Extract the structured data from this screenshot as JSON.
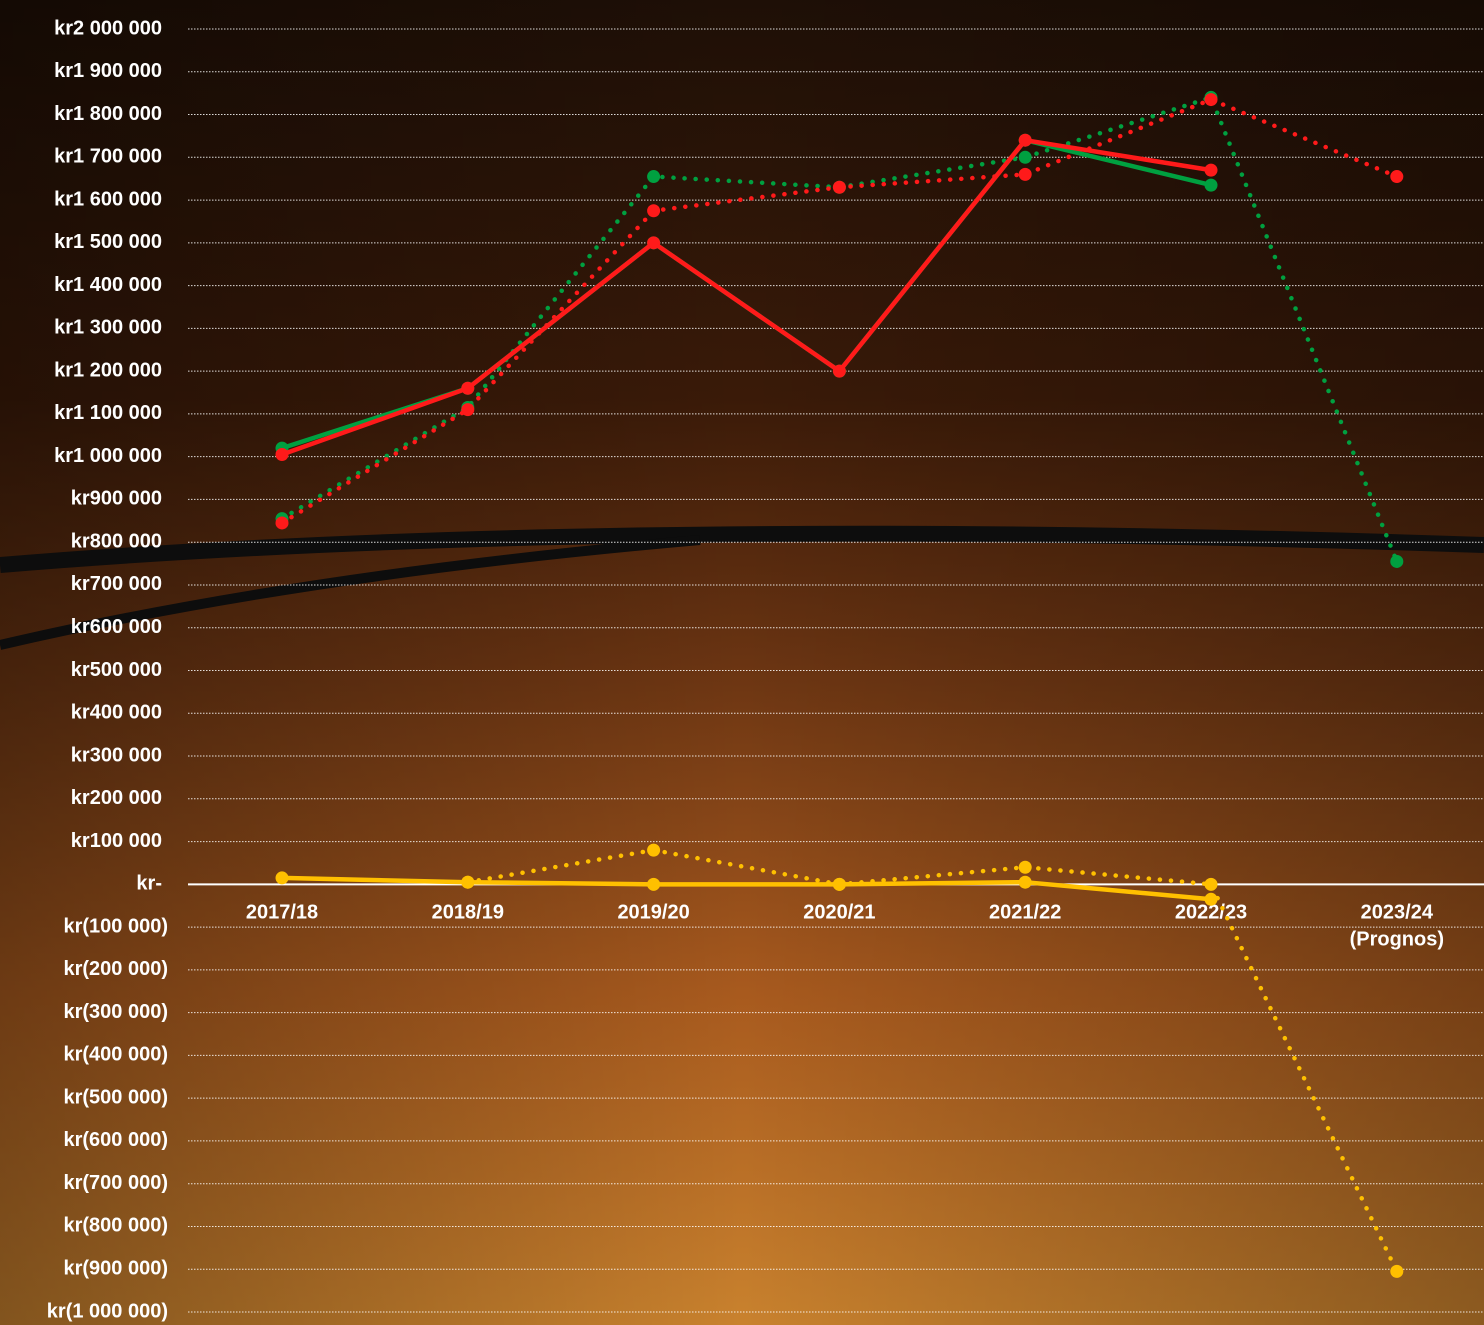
{
  "chart_data": {
    "type": "line",
    "categories": [
      "2017/18",
      "2018/19",
      "2019/20",
      "2020/21",
      "2021/22",
      "2022/23",
      "2023/24\n(Prognos)"
    ],
    "ylim": [
      -1000000,
      2000000
    ],
    "yticks": [
      {
        "value": -1000000,
        "label": "kr(1 000 000)"
      },
      {
        "value": -900000,
        "label": "kr(900 000)"
      },
      {
        "value": -800000,
        "label": "kr(800 000)"
      },
      {
        "value": -700000,
        "label": "kr(700 000)"
      },
      {
        "value": -600000,
        "label": "kr(600 000)"
      },
      {
        "value": -500000,
        "label": "kr(500 000)"
      },
      {
        "value": -400000,
        "label": "kr(400 000)"
      },
      {
        "value": -300000,
        "label": "kr(300 000)"
      },
      {
        "value": -200000,
        "label": "kr(200 000)"
      },
      {
        "value": -100000,
        "label": "kr(100 000)"
      },
      {
        "value": 0,
        "label": "kr-"
      },
      {
        "value": 100000,
        "label": "kr100 000"
      },
      {
        "value": 200000,
        "label": "kr200 000"
      },
      {
        "value": 300000,
        "label": "kr300 000"
      },
      {
        "value": 400000,
        "label": "kr400 000"
      },
      {
        "value": 500000,
        "label": "kr500 000"
      },
      {
        "value": 600000,
        "label": "kr600 000"
      },
      {
        "value": 700000,
        "label": "kr700 000"
      },
      {
        "value": 800000,
        "label": "kr800 000"
      },
      {
        "value": 900000,
        "label": "kr900 000"
      },
      {
        "value": 1000000,
        "label": "kr1 000 000"
      },
      {
        "value": 1100000,
        "label": "kr1 100 000"
      },
      {
        "value": 1200000,
        "label": "kr1 200 000"
      },
      {
        "value": 1300000,
        "label": "kr1 300 000"
      },
      {
        "value": 1400000,
        "label": "kr1 400 000"
      },
      {
        "value": 1500000,
        "label": "kr1 500 000"
      },
      {
        "value": 1600000,
        "label": "kr1 600 000"
      },
      {
        "value": 1700000,
        "label": "kr1 700 000"
      },
      {
        "value": 1800000,
        "label": "kr1 800 000"
      },
      {
        "value": 1900000,
        "label": "kr1 900 000"
      },
      {
        "value": 2000000,
        "label": "kr2 000 000"
      }
    ],
    "grid": true,
    "series": [
      {
        "color": "#00a040",
        "style": "dotted",
        "values": [
          855000,
          1115000,
          1655000,
          1630000,
          1700000,
          1840000,
          755000
        ]
      },
      {
        "color": "#ff1a1a",
        "style": "dotted",
        "values": [
          845000,
          1110000,
          1575000,
          1630000,
          1660000,
          1835000,
          1655000
        ]
      },
      {
        "color": "#ffc000",
        "style": "dotted",
        "values": [
          null,
          5000,
          80000,
          0,
          40000,
          0,
          -905000
        ]
      },
      {
        "color": "#00a040",
        "style": "solid",
        "values": [
          1020000,
          1160000,
          1500000,
          1200000,
          1740000,
          1635000,
          null
        ]
      },
      {
        "color": "#ff1a1a",
        "style": "solid",
        "values": [
          1005000,
          1160000,
          1500000,
          1200000,
          1740000,
          1670000,
          null
        ]
      },
      {
        "color": "#ffc000",
        "style": "solid",
        "values": [
          15000,
          5000,
          0,
          0,
          5000,
          -35000,
          null
        ]
      }
    ]
  }
}
